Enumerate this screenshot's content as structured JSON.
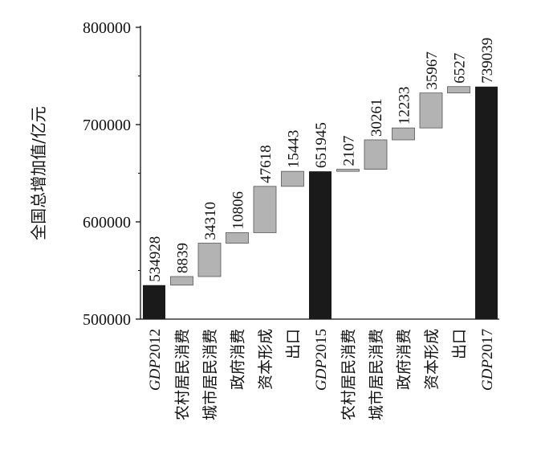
{
  "chart_data": {
    "type": "bar",
    "subtype": "waterfall",
    "ylabel": "全国总增加值/亿元",
    "ylim": [
      500000,
      800000
    ],
    "yticks": [
      500000,
      600000,
      700000,
      800000
    ],
    "ytick_labels": [
      "500000",
      "600000",
      "700000",
      "800000"
    ],
    "grid": false,
    "colors": {
      "total": "#1a1a1a",
      "increment": "#b3b3b3"
    },
    "categories": [
      {
        "label": "GDP2012",
        "italic_prefix": "GDP",
        "suffix": "2012",
        "kind": "total"
      },
      {
        "label": "农村居民消费",
        "kind": "increment"
      },
      {
        "label": "城市居民消费",
        "kind": "increment"
      },
      {
        "label": "政府消费",
        "kind": "increment"
      },
      {
        "label": "资本形成",
        "kind": "increment"
      },
      {
        "label": "出口",
        "kind": "increment"
      },
      {
        "label": "GDP2015",
        "italic_prefix": "GDP",
        "suffix": "2015",
        "kind": "total"
      },
      {
        "label": "农村居民消费",
        "kind": "increment"
      },
      {
        "label": "城市居民消费",
        "kind": "increment"
      },
      {
        "label": "政府消费",
        "kind": "increment"
      },
      {
        "label": "资本形成",
        "kind": "increment"
      },
      {
        "label": "出口",
        "kind": "increment"
      },
      {
        "label": "GDP2017",
        "italic_prefix": "GDP",
        "suffix": "2017",
        "kind": "total"
      }
    ],
    "values": [
      534928,
      8839,
      34310,
      10806,
      47618,
      15443,
      651945,
      2107,
      30261,
      12233,
      35967,
      6527,
      739039
    ],
    "value_labels": [
      "534928",
      "8839",
      "34310",
      "10806",
      "47618",
      "15443",
      "651945",
      "2107",
      "30261",
      "12233",
      "35967",
      "6527",
      "739039"
    ]
  }
}
